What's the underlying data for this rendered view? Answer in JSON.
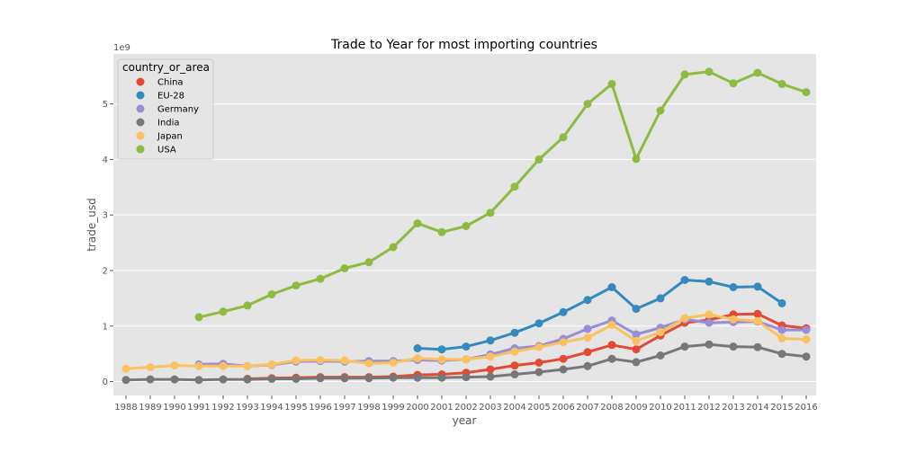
{
  "chart_data": {
    "type": "line",
    "title": "Trade to Year for most importing countries",
    "xlabel": "year",
    "ylabel": "trade_usd",
    "scale_note": "1e9",
    "categories": [
      "1988",
      "1989",
      "1990",
      "1991",
      "1992",
      "1993",
      "1994",
      "1995",
      "1996",
      "1997",
      "1998",
      "1999",
      "2000",
      "2001",
      "2002",
      "2003",
      "2004",
      "2005",
      "2006",
      "2007",
      "2008",
      "2009",
      "2010",
      "2011",
      "2012",
      "2013",
      "2014",
      "2015",
      "2016"
    ],
    "yticks": [
      0,
      1,
      2,
      3,
      4,
      5
    ],
    "ylim": [
      -0.25,
      5.9
    ],
    "grid": true,
    "legend": {
      "title": "country_or_area",
      "placement": "top-left"
    },
    "series": [
      {
        "name": "China",
        "color": "#E24A33",
        "values": [
          null,
          null,
          null,
          null,
          null,
          0.05,
          0.06,
          0.07,
          0.08,
          0.08,
          0.08,
          0.09,
          0.12,
          0.13,
          0.16,
          0.22,
          0.29,
          0.34,
          0.41,
          0.53,
          0.66,
          0.58,
          0.83,
          1.06,
          1.11,
          1.21,
          1.22,
          1.01,
          0.96
        ]
      },
      {
        "name": "EU-28",
        "color": "#348ABD",
        "values": [
          null,
          null,
          null,
          null,
          null,
          null,
          null,
          null,
          null,
          null,
          null,
          null,
          0.6,
          0.58,
          0.63,
          0.74,
          0.88,
          1.05,
          1.25,
          1.47,
          1.7,
          1.31,
          1.5,
          1.83,
          1.8,
          1.7,
          1.71,
          1.41,
          null
        ]
      },
      {
        "name": "Germany",
        "color": "#988ED5",
        "values": [
          null,
          null,
          null,
          0.31,
          0.32,
          0.28,
          0.3,
          0.36,
          0.37,
          0.36,
          0.37,
          0.37,
          0.39,
          0.38,
          0.4,
          0.49,
          0.6,
          0.64,
          0.77,
          0.95,
          1.1,
          0.85,
          0.97,
          1.12,
          1.06,
          1.07,
          1.08,
          0.93,
          0.93
        ]
      },
      {
        "name": "India",
        "color": "#777777",
        "values": [
          0.03,
          0.04,
          0.04,
          0.03,
          0.04,
          0.04,
          0.05,
          0.05,
          0.06,
          0.06,
          0.06,
          0.07,
          0.07,
          0.07,
          0.08,
          0.09,
          0.13,
          0.17,
          0.22,
          0.28,
          0.41,
          0.35,
          0.47,
          0.63,
          0.67,
          0.63,
          0.62,
          0.5,
          0.45
        ]
      },
      {
        "name": "Japan",
        "color": "#FBC15E",
        "values": [
          0.23,
          0.26,
          0.29,
          0.28,
          0.28,
          0.28,
          0.31,
          0.38,
          0.39,
          0.38,
          0.33,
          0.34,
          0.42,
          0.4,
          0.4,
          0.45,
          0.54,
          0.62,
          0.71,
          0.79,
          1.02,
          0.73,
          0.89,
          1.14,
          1.21,
          1.12,
          1.09,
          0.78,
          0.76
        ]
      },
      {
        "name": "USA",
        "color": "#8EBA42",
        "values": [
          null,
          null,
          null,
          1.16,
          1.26,
          1.37,
          1.57,
          1.73,
          1.85,
          2.04,
          2.15,
          2.42,
          2.85,
          2.69,
          2.8,
          3.04,
          3.51,
          4.0,
          4.4,
          5.0,
          5.36,
          4.01,
          4.88,
          5.53,
          5.58,
          5.37,
          5.56,
          5.36,
          5.21
        ]
      }
    ]
  }
}
